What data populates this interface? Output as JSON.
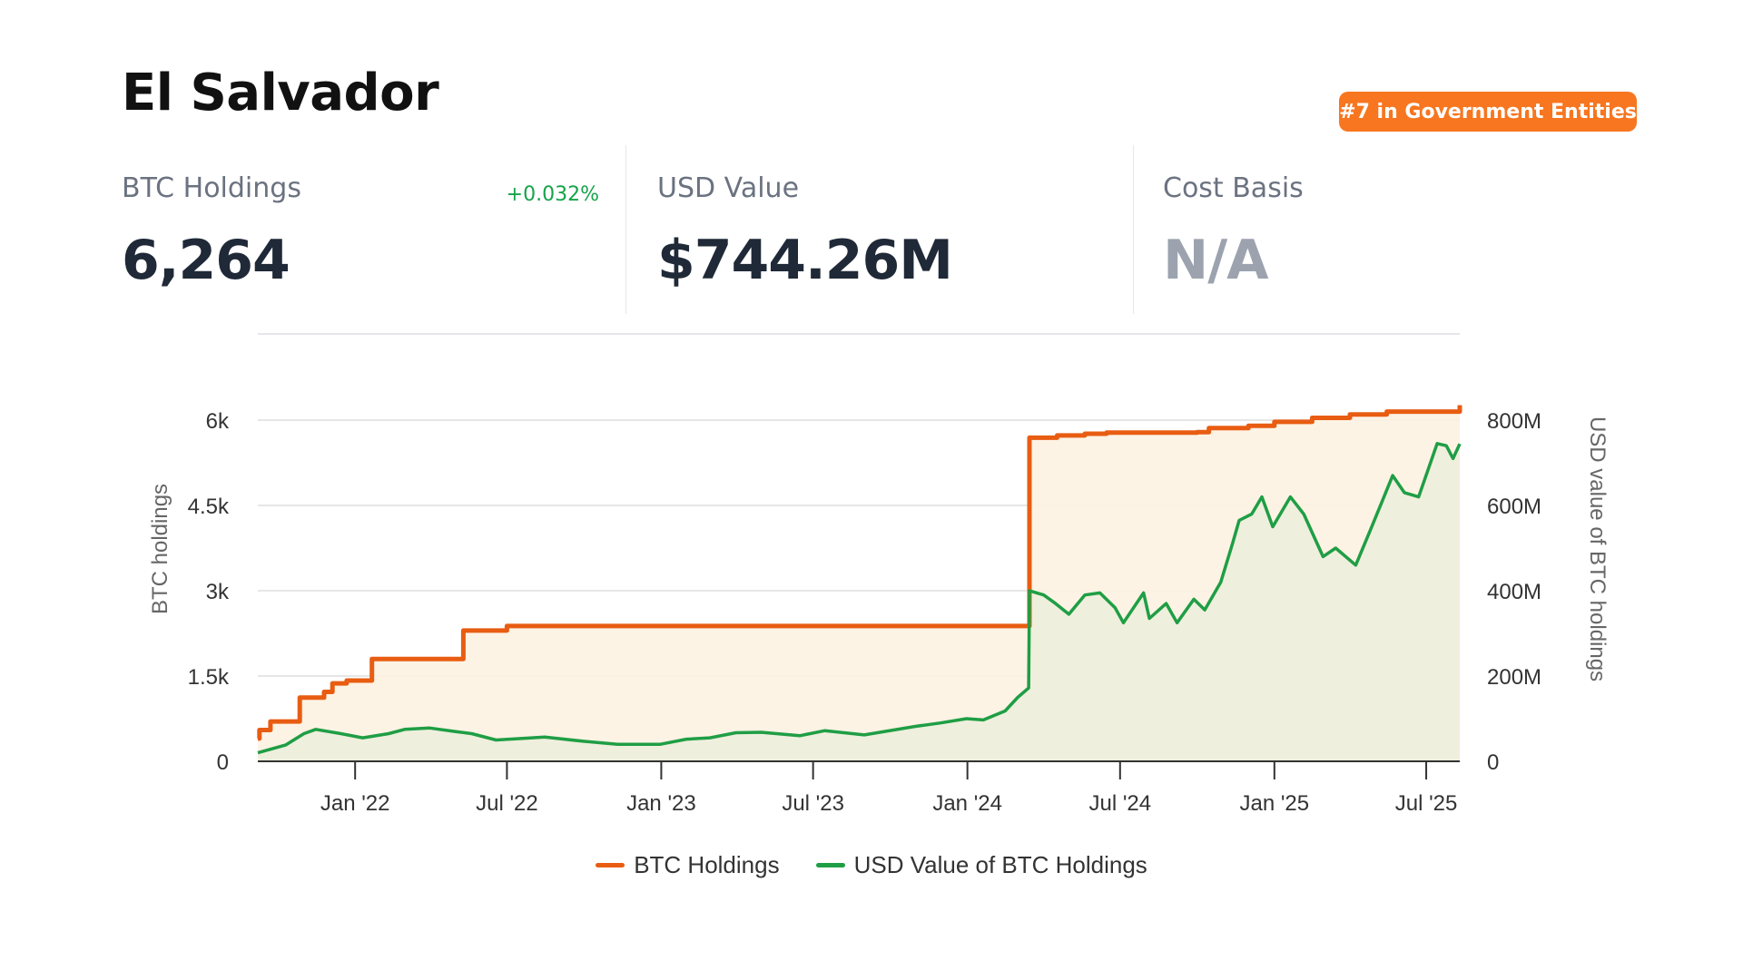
{
  "header": {
    "title": "El Salvador",
    "rank_badge": "#7 in Government Entities"
  },
  "stats": {
    "btc_holdings": {
      "label": "BTC Holdings",
      "value": "6,264",
      "change": "+0.032%"
    },
    "usd_value": {
      "label": "USD Value",
      "value": "$744.26M"
    },
    "cost_basis": {
      "label": "Cost Basis",
      "value": "N/A"
    }
  },
  "colors": {
    "accent": "#f7761f",
    "btc_line": "#e85d12",
    "btc_fill": "#fdf2e1",
    "usd_line": "#1f9e45",
    "usd_fill": "#eeeedc",
    "positive": "#16a34a"
  },
  "chart_data": {
    "type": "line",
    "x_ticks": [
      "Jan '22",
      "Jul '22",
      "Jan '23",
      "Jul '23",
      "Jan '24",
      "Jul '24",
      "Jan '25",
      "Jul '25"
    ],
    "x_range": [
      "2021-09-07",
      "2025-08-10"
    ],
    "y_left": {
      "label": "BTC holdings",
      "ticks": [
        "0",
        "1.5k",
        "3k",
        "4.5k",
        "6k"
      ],
      "range": [
        0,
        6000
      ],
      "tick_values": [
        0,
        1500,
        3000,
        4500,
        6000
      ]
    },
    "y_right": {
      "label": "USD value of BTC holdings",
      "ticks": [
        "0",
        "200M",
        "400M",
        "600M",
        "800M"
      ],
      "range": [
        0,
        800000000
      ],
      "tick_values": [
        0,
        200000000,
        400000000,
        600000000,
        800000000
      ]
    },
    "grid": true,
    "legend_position": "bottom",
    "series": [
      {
        "name": "BTC Holdings",
        "axis": "left",
        "step": true,
        "points": [
          [
            "2021-09-07",
            400
          ],
          [
            "2021-09-09",
            550
          ],
          [
            "2021-09-22",
            700
          ],
          [
            "2021-10-27",
            1120
          ],
          [
            "2021-11-25",
            1220
          ],
          [
            "2021-12-05",
            1370
          ],
          [
            "2021-12-22",
            1420
          ],
          [
            "2022-01-21",
            1800
          ],
          [
            "2022-05-10",
            2300
          ],
          [
            "2022-07-01",
            2380
          ],
          [
            "2024-03-14",
            2380
          ],
          [
            "2024-03-15",
            5690
          ],
          [
            "2024-04-17",
            5730
          ],
          [
            "2024-05-20",
            5760
          ],
          [
            "2024-06-15",
            5780
          ],
          [
            "2024-10-01",
            5790
          ],
          [
            "2024-10-15",
            5860
          ],
          [
            "2024-12-01",
            5900
          ],
          [
            "2025-01-01",
            5970
          ],
          [
            "2025-02-15",
            6040
          ],
          [
            "2025-04-01",
            6100
          ],
          [
            "2025-05-15",
            6150
          ],
          [
            "2025-08-10",
            6264
          ]
        ]
      },
      {
        "name": "USD Value of BTC Holdings",
        "axis": "right",
        "step": false,
        "points": [
          [
            "2021-09-07",
            20000000
          ],
          [
            "2021-10-10",
            38000000
          ],
          [
            "2021-11-01",
            65000000
          ],
          [
            "2021-11-15",
            75000000
          ],
          [
            "2021-12-15",
            65000000
          ],
          [
            "2022-01-10",
            55000000
          ],
          [
            "2022-02-10",
            65000000
          ],
          [
            "2022-03-01",
            75000000
          ],
          [
            "2022-03-31",
            78000000
          ],
          [
            "2022-04-30",
            70000000
          ],
          [
            "2022-05-20",
            65000000
          ],
          [
            "2022-06-18",
            50000000
          ],
          [
            "2022-07-31",
            55000000
          ],
          [
            "2022-08-15",
            57000000
          ],
          [
            "2022-09-30",
            47000000
          ],
          [
            "2022-11-10",
            40000000
          ],
          [
            "2022-12-31",
            40000000
          ],
          [
            "2023-01-31",
            52000000
          ],
          [
            "2023-02-28",
            55000000
          ],
          [
            "2023-03-31",
            67000000
          ],
          [
            "2023-04-30",
            68000000
          ],
          [
            "2023-06-15",
            60000000
          ],
          [
            "2023-07-15",
            72000000
          ],
          [
            "2023-08-31",
            62000000
          ],
          [
            "2023-10-31",
            82000000
          ],
          [
            "2023-11-30",
            90000000
          ],
          [
            "2023-12-31",
            100000000
          ],
          [
            "2024-01-20",
            97000000
          ],
          [
            "2024-02-15",
            118000000
          ],
          [
            "2024-03-01",
            150000000
          ],
          [
            "2024-03-14",
            172000000
          ],
          [
            "2024-03-15",
            400000000
          ],
          [
            "2024-04-01",
            390000000
          ],
          [
            "2024-04-15",
            370000000
          ],
          [
            "2024-05-01",
            345000000
          ],
          [
            "2024-05-20",
            390000000
          ],
          [
            "2024-06-07",
            395000000
          ],
          [
            "2024-06-25",
            360000000
          ],
          [
            "2024-07-05",
            325000000
          ],
          [
            "2024-07-29",
            395000000
          ],
          [
            "2024-08-05",
            335000000
          ],
          [
            "2024-08-25",
            370000000
          ],
          [
            "2024-09-07",
            325000000
          ],
          [
            "2024-09-27",
            380000000
          ],
          [
            "2024-10-10",
            355000000
          ],
          [
            "2024-10-29",
            420000000
          ],
          [
            "2024-11-12",
            510000000
          ],
          [
            "2024-11-20",
            565000000
          ],
          [
            "2024-12-05",
            580000000
          ],
          [
            "2024-12-17",
            620000000
          ],
          [
            "2024-12-30",
            550000000
          ],
          [
            "2025-01-20",
            620000000
          ],
          [
            "2025-02-05",
            580000000
          ],
          [
            "2025-02-28",
            480000000
          ],
          [
            "2025-03-15",
            500000000
          ],
          [
            "2025-04-08",
            460000000
          ],
          [
            "2025-04-25",
            540000000
          ],
          [
            "2025-05-22",
            670000000
          ],
          [
            "2025-06-05",
            630000000
          ],
          [
            "2025-06-22",
            620000000
          ],
          [
            "2025-07-14",
            745000000
          ],
          [
            "2025-07-25",
            740000000
          ],
          [
            "2025-08-02",
            710000000
          ],
          [
            "2025-08-10",
            744260000
          ]
        ]
      }
    ]
  }
}
